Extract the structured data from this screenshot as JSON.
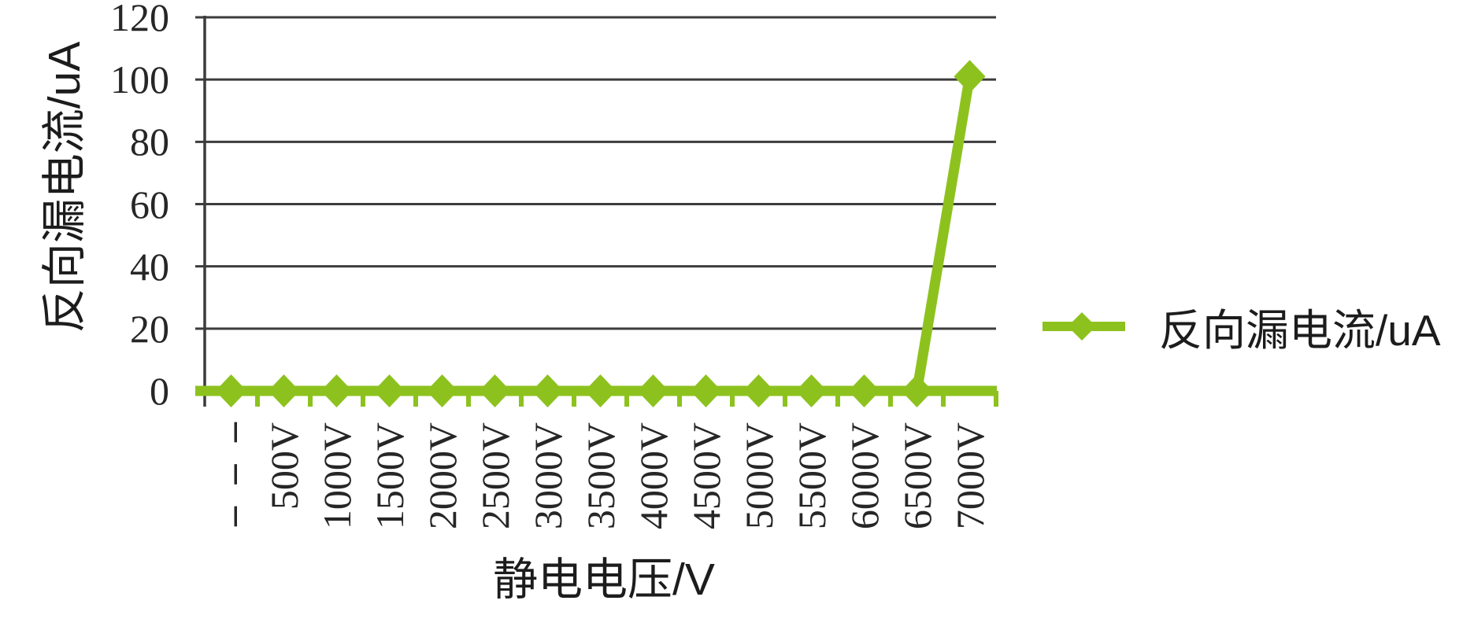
{
  "colors": {
    "series": "#8DC21E",
    "gridline": "#3C3C3C",
    "text": "#1C1C1C",
    "background": "#FFFFFF"
  },
  "chart_data": {
    "type": "line",
    "title": "",
    "xlabel": "静电电压/V",
    "ylabel": "反向漏电流/uA",
    "categories": [
      "– – –",
      "500V",
      "1000V",
      "1500V",
      "2000V",
      "2500V",
      "3000V",
      "3500V",
      "4000V",
      "4500V",
      "5000V",
      "5500V",
      "6000V",
      "6500V",
      "7000V"
    ],
    "yticks": [
      0,
      20,
      40,
      60,
      80,
      100,
      120
    ],
    "ylim": [
      0,
      120
    ],
    "grid": true,
    "marker": "diamond",
    "legend_position": "right",
    "series": [
      {
        "name": "反向漏电流/uA",
        "values": [
          0,
          0,
          0,
          0,
          0,
          0,
          0,
          0,
          0,
          0,
          0,
          0,
          0,
          0,
          101
        ]
      }
    ]
  }
}
